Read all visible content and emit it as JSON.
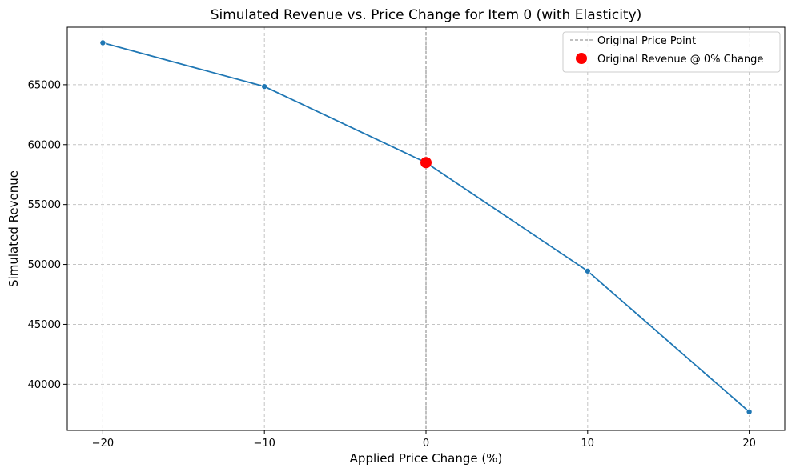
{
  "chart_data": {
    "type": "line",
    "title": "Simulated Revenue vs. Price Change for Item 0 (with Elasticity)",
    "xlabel": "Applied Price Change (%)",
    "ylabel": "Simulated Revenue",
    "xlim": [
      -22.2,
      22.2
    ],
    "ylim": [
      36150,
      69800
    ],
    "xticks": [
      -20,
      -10,
      0,
      10,
      20
    ],
    "xtick_labels": [
      "−20",
      "−10",
      "0",
      "10",
      "20"
    ],
    "yticks": [
      40000,
      45000,
      50000,
      55000,
      60000,
      65000
    ],
    "ytick_labels": [
      "40000",
      "45000",
      "50000",
      "55000",
      "60000",
      "65000"
    ],
    "grid": true,
    "legend_position": "top-right",
    "series": [
      {
        "x": [
          -20,
          -10,
          0,
          10,
          20
        ],
        "y": [
          68500,
          64850,
          58500,
          49450,
          37700
        ],
        "color": "#1f77b4"
      }
    ],
    "reference_line": {
      "x": 0,
      "label": "Original Price Point",
      "color": "#808080"
    },
    "highlight_point": {
      "x": 0,
      "y": 58500,
      "label": "Original Revenue @ 0% Change",
      "color": "#ff0000"
    }
  }
}
